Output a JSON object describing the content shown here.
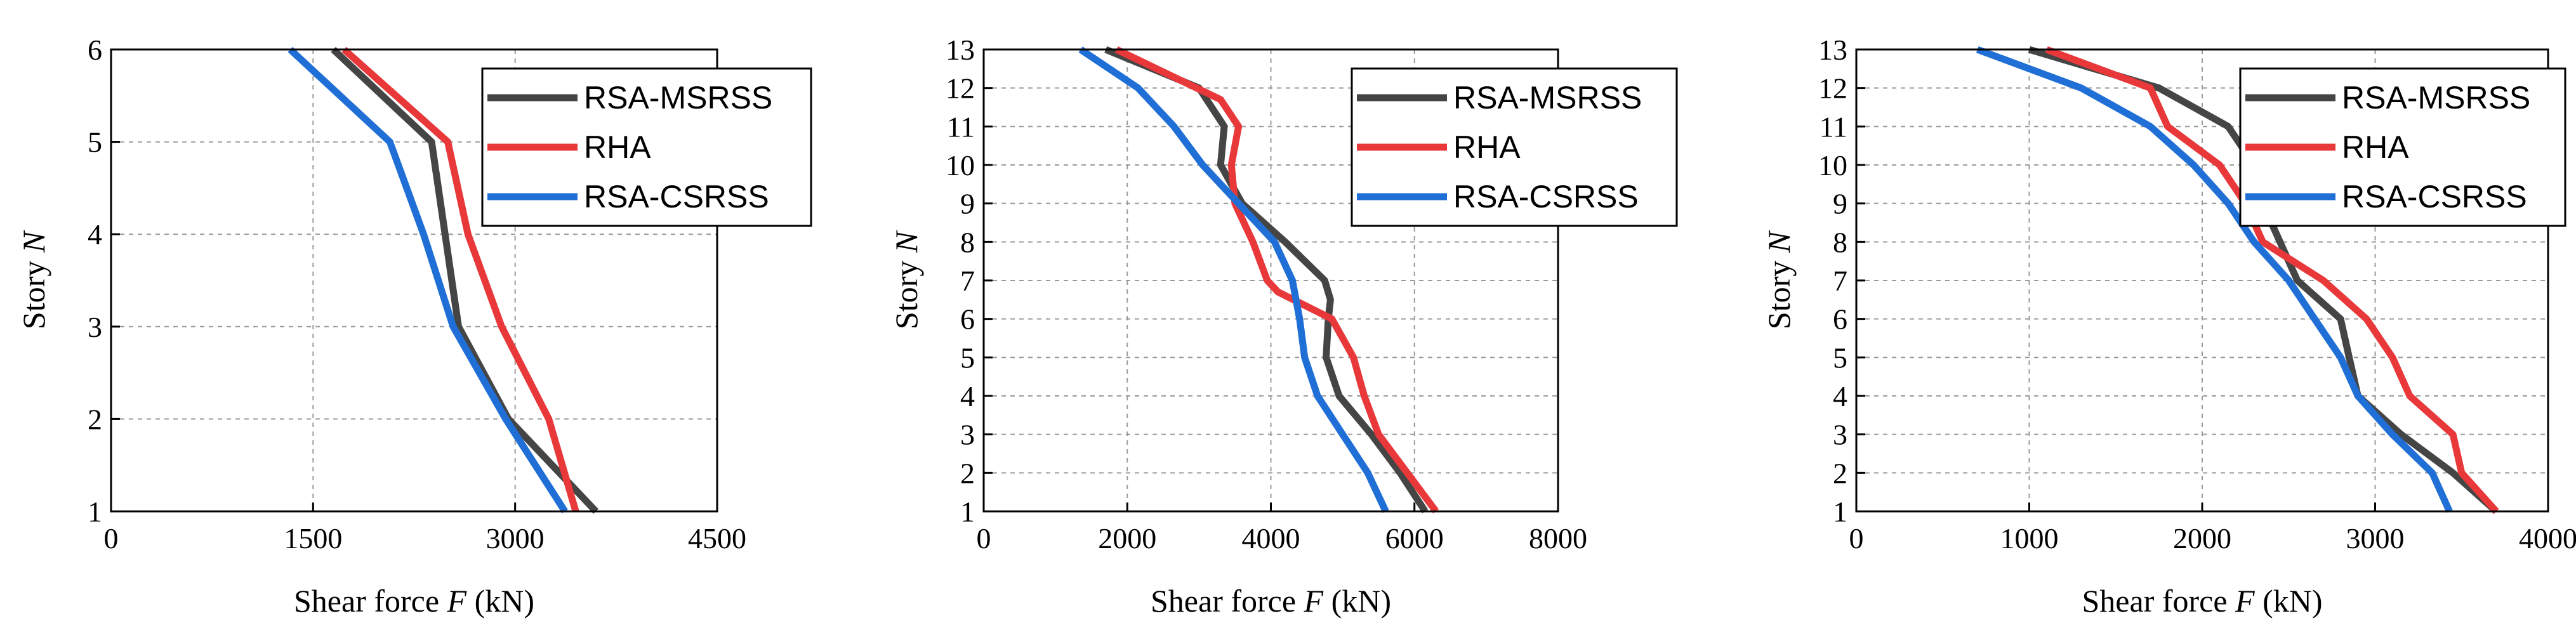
{
  "chart_data": [
    {
      "type": "line",
      "xlabel_prefix": "Shear force ",
      "xlabel_var": "F",
      "xlabel_unit": " (kN)",
      "ylabel_prefix": "Story ",
      "ylabel_var": "N",
      "xlim": [
        0,
        4500
      ],
      "ylim": [
        1,
        6
      ],
      "xticks": [
        0,
        1500,
        3000,
        4500
      ],
      "yticks": [
        1,
        2,
        3,
        4,
        5,
        6
      ],
      "grid": true,
      "legend": "top-right",
      "series": [
        {
          "name": "RSA-MSRSS",
          "color": "#454545",
          "x": [
            3600,
            2950,
            2580,
            2480,
            2380,
            1650
          ],
          "y": [
            1,
            2,
            3,
            4,
            5,
            6
          ]
        },
        {
          "name": "RHA",
          "color": "#e8383a",
          "x": [
            3450,
            3250,
            2900,
            2650,
            2500,
            1730
          ],
          "y": [
            1,
            2,
            3,
            4,
            5,
            6
          ]
        },
        {
          "name": "RSA-CSRSS",
          "color": "#1f6fd6",
          "x": [
            3370,
            2930,
            2540,
            2320,
            2070,
            1330
          ],
          "y": [
            1,
            2,
            3,
            4,
            5,
            6
          ]
        }
      ]
    },
    {
      "type": "line",
      "xlabel_prefix": "Shear force ",
      "xlabel_var": "F",
      "xlabel_unit": " (kN)",
      "ylabel_prefix": "Story ",
      "ylabel_var": "N",
      "xlim": [
        0,
        8000
      ],
      "ylim": [
        1,
        13
      ],
      "xticks": [
        0,
        2000,
        4000,
        6000,
        8000
      ],
      "yticks": [
        1,
        2,
        3,
        4,
        5,
        6,
        7,
        8,
        9,
        10,
        11,
        12,
        13
      ],
      "grid": true,
      "legend": "top-right",
      "series": [
        {
          "name": "RSA-MSRSS",
          "color": "#454545",
          "x": [
            6150,
            5800,
            5400,
            4950,
            4770,
            4800,
            4830,
            4750,
            4200,
            3600,
            3300,
            3350,
            3000,
            1700
          ],
          "y": [
            1,
            2,
            3,
            4,
            5,
            6,
            6.5,
            7,
            8,
            9,
            10,
            11,
            12,
            13
          ]
        },
        {
          "name": "RHA",
          "color": "#e8383a",
          "x": [
            6300,
            5900,
            5500,
            5300,
            5150,
            4850,
            4100,
            3950,
            3750,
            3500,
            3450,
            3550,
            3300,
            1850
          ],
          "y": [
            1,
            2,
            3,
            4,
            5,
            6,
            6.7,
            7,
            8,
            9,
            10,
            11,
            11.7,
            13
          ]
        },
        {
          "name": "RSA-CSRSS",
          "color": "#1f6fd6",
          "x": [
            5600,
            5350,
            5000,
            4650,
            4470,
            4400,
            4300,
            4050,
            3550,
            3050,
            2650,
            2150,
            1350
          ],
          "y": [
            1,
            2,
            3,
            4,
            5,
            6,
            7,
            8,
            9,
            10,
            11,
            12,
            13
          ]
        }
      ]
    },
    {
      "type": "line",
      "xlabel_prefix": "Shear force ",
      "xlabel_var": "F",
      "xlabel_unit": " (kN)",
      "ylabel_prefix": "Story ",
      "ylabel_var": "N",
      "xlim": [
        0,
        4000
      ],
      "ylim": [
        1,
        13
      ],
      "xticks": [
        0,
        1000,
        2000,
        3000,
        4000
      ],
      "yticks": [
        1,
        2,
        3,
        4,
        5,
        6,
        7,
        8,
        9,
        10,
        11,
        12,
        13
      ],
      "grid": true,
      "legend": "top-right",
      "series": [
        {
          "name": "RSA-MSRSS",
          "color": "#454545",
          "x": [
            3700,
            3450,
            3150,
            2900,
            2850,
            2800,
            2550,
            2450,
            2350,
            2300,
            2150,
            1750,
            1000
          ],
          "y": [
            1,
            2,
            3,
            4,
            5,
            6,
            7,
            8,
            9,
            10,
            11,
            12,
            13
          ]
        },
        {
          "name": "RHA",
          "color": "#e8383a",
          "x": [
            3700,
            3500,
            3450,
            3200,
            3100,
            2950,
            2700,
            2350,
            2250,
            2100,
            1800,
            1700,
            1100
          ],
          "y": [
            1,
            2,
            3,
            4,
            5,
            6,
            7,
            8,
            9,
            10,
            11,
            12,
            13
          ]
        },
        {
          "name": "RSA-CSRSS",
          "color": "#1f6fd6",
          "x": [
            3430,
            3330,
            3100,
            2900,
            2800,
            2650,
            2500,
            2300,
            2150,
            1950,
            1700,
            1300,
            700
          ],
          "y": [
            1,
            2,
            3,
            4,
            5,
            6,
            7,
            8,
            9,
            10,
            11,
            12,
            13
          ]
        }
      ]
    }
  ]
}
